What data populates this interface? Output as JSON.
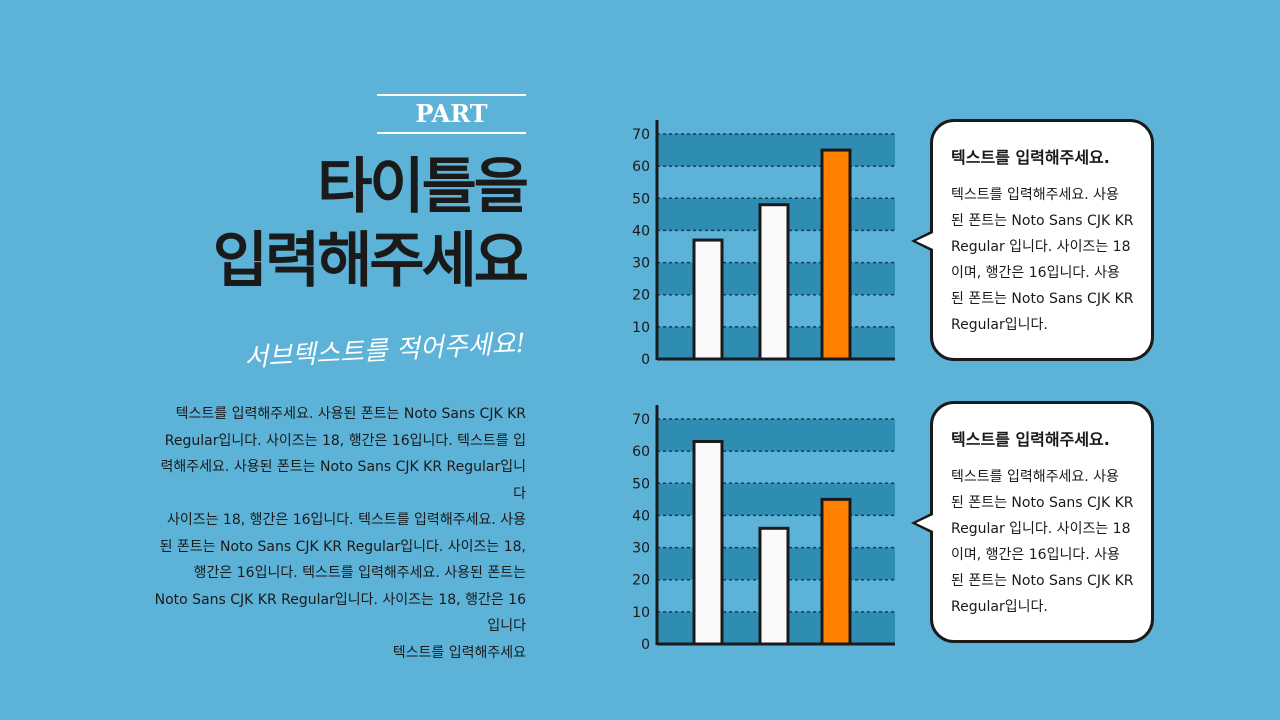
{
  "part_label": "PART",
  "title_lines": [
    "타이틀을",
    "입력해주세요"
  ],
  "subtitle": "서브텍스트를 적어주세요!",
  "body_lines": [
    "텍스트를 입력해주세요. 사용된 폰트는 Noto Sans CJK KR",
    "Regular입니다.  사이즈는 18, 행간은 16입니다. 텍스트를 입",
    "력해주세요. 사용된 폰트는 Noto Sans CJK KR Regular입니",
    "다",
    "사이즈는 18, 행간은 16입니다. 텍스트를 입력해주세요. 사용",
    "된 폰트는 Noto Sans CJK KR Regular입니다.  사이즈는 18,",
    "행간은 16입니다. 텍스트를 입력해주세요. 사용된 폰트는",
    "Noto Sans CJK KR Regular입니다.  사이즈는 18, 행간은 16",
    "입니다",
    "텍스트를 입력해주세요"
  ],
  "colors": {
    "background": "#5cb2d7",
    "band": "#2f8db3",
    "bar_default": "#fafafc",
    "bar_highlight": "#ff8000",
    "axis": "#1a1a1a"
  },
  "chart_data": [
    {
      "type": "bar",
      "categories": [
        "",
        "",
        ""
      ],
      "values": [
        37,
        48,
        65
      ],
      "highlight_index": 2,
      "ylim": [
        0,
        70
      ],
      "yticks": [
        "0",
        "10",
        "20",
        "30",
        "40",
        "50",
        "60",
        "70"
      ],
      "grid": "dashed"
    },
    {
      "type": "bar",
      "categories": [
        "",
        "",
        ""
      ],
      "values": [
        63,
        36,
        45
      ],
      "highlight_index": 2,
      "ylim": [
        0,
        70
      ],
      "yticks": [
        "0",
        "10",
        "20",
        "30",
        "40",
        "50",
        "60",
        "70"
      ],
      "grid": "dashed"
    }
  ],
  "callouts": [
    {
      "title": "텍스트를 입력해주세요.",
      "lines": [
        "텍스트를 입력해주세요. 사용",
        "된 폰트는 Noto Sans CJK KR",
        "Regular 입니다. 사이즈는 18",
        "이며, 행간은 16입니다. 사용",
        "된 폰트는 Noto Sans CJK KR",
        "Regular입니다."
      ]
    },
    {
      "title": "텍스트를 입력해주세요.",
      "lines": [
        "텍스트를 입력해주세요. 사용",
        "된 폰트는 Noto Sans CJK KR",
        "Regular 입니다. 사이즈는 18",
        "이며, 행간은 16입니다. 사용",
        "된 폰트는 Noto Sans CJK KR",
        "Regular입니다."
      ]
    }
  ]
}
